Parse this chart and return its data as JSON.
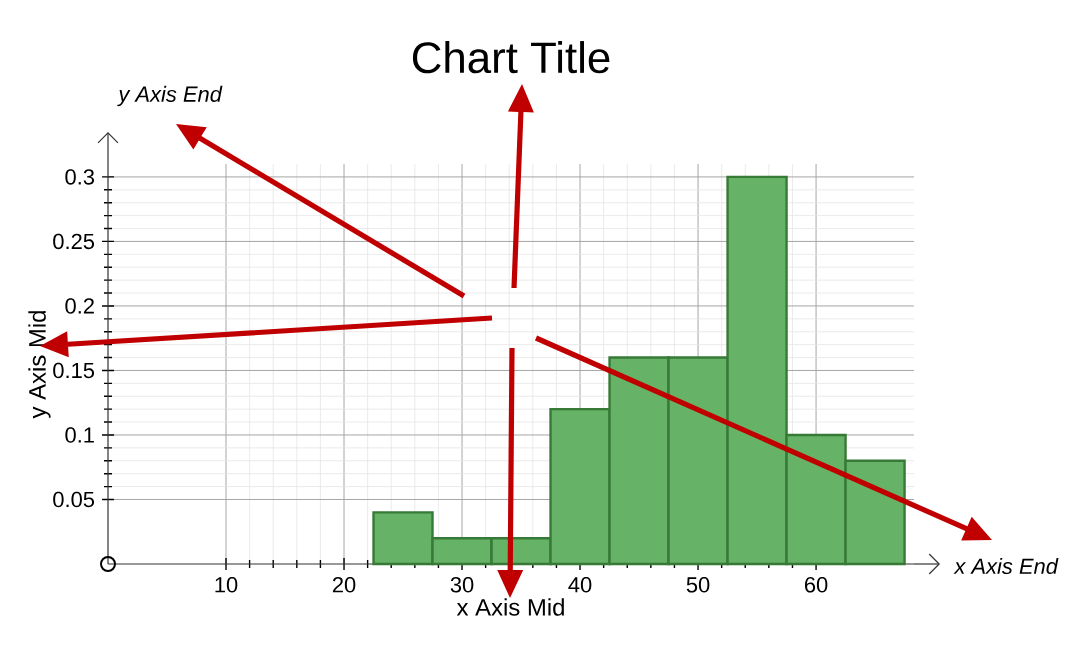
{
  "chart_data": {
    "type": "histogram",
    "title": "Chart Title",
    "xlabel": "x Axis Mid",
    "ylabel": "y Axis Mid",
    "annotations": [
      "y Axis End",
      "x Axis End"
    ],
    "bins": [
      22.5,
      27.5,
      32.5,
      37.5,
      42.5,
      47.5,
      52.5,
      57.5,
      62.5,
      67.5
    ],
    "values": [
      0.04,
      0.02,
      0.02,
      0.12,
      0.16,
      0.16,
      0.3,
      0.1,
      0.08
    ],
    "color": "#66b266",
    "xlim": [
      0,
      68.3
    ],
    "ylim": [
      0,
      0.31
    ],
    "xticks": [
      10,
      20,
      30,
      40,
      50,
      60
    ],
    "yticks": [
      0.05,
      0.1,
      0.15,
      0.2,
      0.25,
      0.3
    ],
    "grid": true
  }
}
